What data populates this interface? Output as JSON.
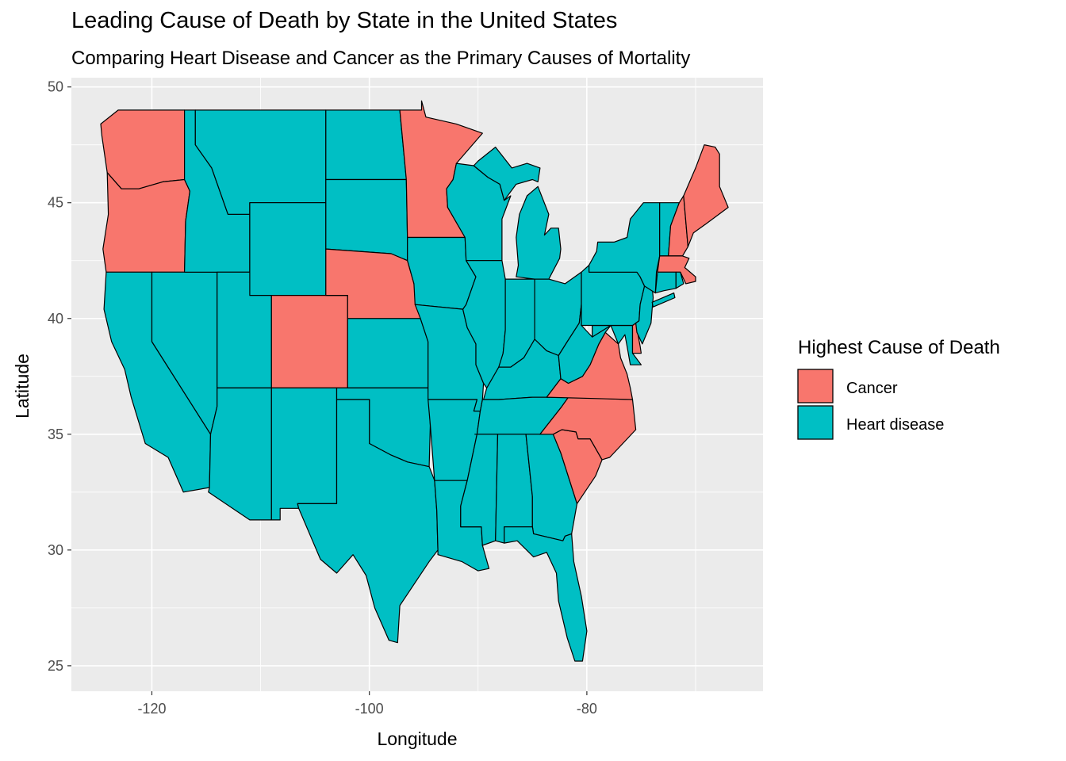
{
  "title": "Leading Cause of Death by State in the United States",
  "subtitle": "Comparing Heart Disease and Cancer as the Primary Causes of Mortality",
  "colors": {
    "panel": "#EBEBEB",
    "grid_major": "#FFFFFF",
    "cancer": "#F8766D",
    "heart_disease": "#00BFC4"
  },
  "chart_data": {
    "type": "map",
    "xlabel": "Longitude",
    "ylabel": "Latitude",
    "xlim": [
      -127.4,
      -63.8
    ],
    "ylim": [
      23.9,
      50.4
    ],
    "x_ticks": [
      -120,
      -100,
      -80
    ],
    "y_ticks": [
      25,
      30,
      35,
      40,
      45,
      50
    ],
    "x_tick_labels": [
      "-120",
      "-100",
      "-80"
    ],
    "y_tick_labels": [
      "25",
      "30",
      "35",
      "40",
      "45",
      "50"
    ],
    "grid": true,
    "legend": {
      "title": "Highest Cause of Death",
      "position": "right",
      "entries": [
        {
          "label": "Cancer",
          "key": "cancer"
        },
        {
          "label": "Heart disease",
          "key": "heart_disease"
        }
      ]
    },
    "cancer_states": [
      "washington",
      "oregon",
      "colorado",
      "nebraska",
      "minnesota",
      "virginia",
      "north carolina",
      "south carolina",
      "delaware",
      "new hampshire",
      "maine",
      "massachusetts"
    ]
  }
}
